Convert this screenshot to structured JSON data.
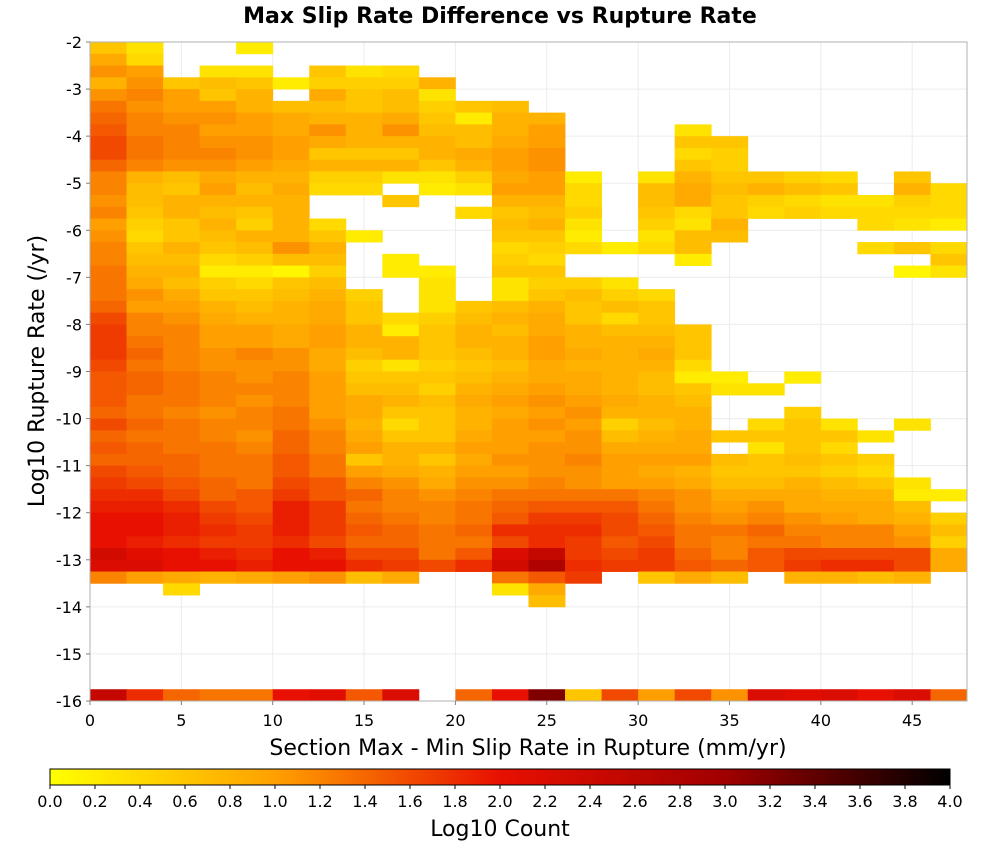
{
  "chart_data": {
    "type": "heatmap",
    "title": "Max Slip Rate Difference vs Rupture Rate",
    "xlabel": "Section Max - Min Slip Rate in Rupture (mm/yr)",
    "ylabel": "Log10 Rupture Rate (/yr)",
    "xlim": [
      0,
      48
    ],
    "ylim": [
      -16,
      -2
    ],
    "x_ticks": [
      "0",
      "5",
      "10",
      "15",
      "20",
      "25",
      "30",
      "35",
      "40",
      "45"
    ],
    "y_ticks": [
      "-2",
      "-3",
      "-4",
      "-5",
      "-6",
      "-7",
      "-8",
      "-9",
      "-10",
      "-11",
      "-12",
      "-13",
      "-14",
      "-15",
      "-16"
    ],
    "grid": true,
    "x_bin_width": 2,
    "y_bin_height": 0.25,
    "x_bin_starts": [
      0,
      2,
      4,
      6,
      8,
      10,
      12,
      14,
      16,
      18,
      20,
      22,
      24,
      26,
      28,
      30,
      32,
      34,
      36,
      38,
      40,
      42,
      44,
      46
    ],
    "y_bin_lows": [
      -2.25,
      -2.5,
      -2.75,
      -3.0,
      -3.25,
      -3.5,
      -3.75,
      -4.0,
      -4.25,
      -4.5,
      -4.75,
      -5.0,
      -5.25,
      -5.5,
      -5.75,
      -6.0,
      -6.25,
      -6.5,
      -6.75,
      -7.0,
      -7.25,
      -7.5,
      -7.75,
      -8.0,
      -8.25,
      -8.5,
      -8.75,
      -9.0,
      -9.25,
      -9.5,
      -9.75,
      -10.0,
      -10.25,
      -10.5,
      -10.75,
      -11.0,
      -11.25,
      -11.5,
      -11.75,
      -12.0,
      -12.25,
      -12.5,
      -12.75,
      -13.0,
      -13.25,
      -13.5,
      -13.75,
      -14.0,
      -16.0
    ],
    "log10_counts": [
      [
        0.6,
        0.3,
        null,
        null,
        0.2,
        null,
        null,
        null,
        null,
        null,
        null,
        null,
        null,
        null,
        null,
        null,
        null,
        null,
        null,
        null,
        null,
        null,
        null,
        null
      ],
      [
        0.9,
        0.4,
        null,
        null,
        null,
        null,
        null,
        null,
        null,
        null,
        null,
        null,
        null,
        null,
        null,
        null,
        null,
        null,
        null,
        null,
        null,
        null,
        null,
        null
      ],
      [
        1.1,
        1.0,
        null,
        0.3,
        0.3,
        null,
        0.6,
        0.3,
        0.4,
        null,
        null,
        null,
        null,
        null,
        null,
        null,
        null,
        null,
        null,
        null,
        null,
        null,
        null,
        null
      ],
      [
        0.8,
        1.1,
        0.6,
        0.7,
        0.6,
        0.2,
        0.5,
        0.5,
        0.5,
        0.8,
        null,
        null,
        null,
        null,
        null,
        null,
        null,
        null,
        null,
        null,
        null,
        null,
        null,
        null
      ],
      [
        1.1,
        1.2,
        1.0,
        0.6,
        0.8,
        null,
        0.9,
        0.6,
        0.7,
        0.3,
        null,
        null,
        null,
        null,
        null,
        null,
        null,
        null,
        null,
        null,
        null,
        null,
        null,
        null
      ],
      [
        1.3,
        1.1,
        1.0,
        1.0,
        0.8,
        0.7,
        0.7,
        0.6,
        0.7,
        0.5,
        0.6,
        0.7,
        null,
        null,
        null,
        null,
        null,
        null,
        null,
        null,
        null,
        null,
        null,
        null
      ],
      [
        1.4,
        1.2,
        1.1,
        1.1,
        1.0,
        0.9,
        0.8,
        0.8,
        0.9,
        0.6,
        0.2,
        0.8,
        0.8,
        null,
        null,
        null,
        null,
        null,
        null,
        null,
        null,
        null,
        null,
        null
      ],
      [
        1.5,
        1.2,
        1.2,
        1.0,
        1.0,
        0.9,
        1.1,
        0.8,
        1.1,
        0.7,
        0.7,
        0.8,
        1.0,
        null,
        null,
        null,
        0.3,
        null,
        null,
        null,
        null,
        null,
        null,
        null
      ],
      [
        1.6,
        1.3,
        1.2,
        1.1,
        1.1,
        1.0,
        0.9,
        0.8,
        0.8,
        0.8,
        0.7,
        0.9,
        1.0,
        null,
        null,
        null,
        0.6,
        0.6,
        null,
        null,
        null,
        null,
        null,
        null
      ],
      [
        1.6,
        1.3,
        1.2,
        1.2,
        1.1,
        1.0,
        0.6,
        0.6,
        0.6,
        0.8,
        0.9,
        1.0,
        1.1,
        null,
        null,
        null,
        0.4,
        0.5,
        null,
        null,
        null,
        null,
        null,
        null
      ],
      [
        1.4,
        1.2,
        1.1,
        1.1,
        1.0,
        0.9,
        0.8,
        0.8,
        0.8,
        0.6,
        0.8,
        1.0,
        1.1,
        null,
        null,
        null,
        0.6,
        0.5,
        null,
        null,
        null,
        null,
        null,
        null
      ],
      [
        1.2,
        0.8,
        0.7,
        0.9,
        0.8,
        0.8,
        0.5,
        0.5,
        0.3,
        0.3,
        0.5,
        0.9,
        1.0,
        0.2,
        null,
        0.3,
        0.8,
        0.6,
        0.6,
        0.5,
        0.4,
        null,
        0.6,
        null
      ],
      [
        1.2,
        0.7,
        0.6,
        1.0,
        0.7,
        0.9,
        0.4,
        0.4,
        null,
        0.2,
        0.3,
        1.0,
        1.0,
        0.4,
        null,
        0.7,
        0.9,
        0.7,
        0.8,
        0.7,
        0.6,
        null,
        0.8,
        0.4
      ],
      [
        1.1,
        0.7,
        0.8,
        0.8,
        0.8,
        0.8,
        null,
        null,
        0.6,
        null,
        null,
        0.8,
        0.8,
        0.4,
        null,
        0.7,
        0.9,
        0.6,
        0.5,
        0.4,
        0.3,
        0.3,
        0.5,
        0.4
      ],
      [
        1.2,
        0.6,
        0.8,
        0.7,
        0.6,
        0.8,
        null,
        null,
        null,
        null,
        0.4,
        0.6,
        0.7,
        0.5,
        null,
        0.6,
        0.4,
        0.6,
        0.4,
        0.5,
        0.4,
        0.4,
        0.4,
        0.4
      ],
      [
        1.0,
        0.5,
        0.6,
        0.8,
        0.5,
        0.8,
        0.4,
        null,
        null,
        null,
        null,
        0.7,
        0.8,
        0.3,
        null,
        0.5,
        0.3,
        0.8,
        null,
        null,
        null,
        0.4,
        0.3,
        0.2
      ],
      [
        1.1,
        0.4,
        0.6,
        0.7,
        0.8,
        0.8,
        0.6,
        0.2,
        null,
        null,
        null,
        0.6,
        0.6,
        0.2,
        null,
        0.3,
        0.7,
        0.7,
        null,
        null,
        null,
        null,
        null,
        null
      ],
      [
        1.2,
        0.6,
        0.8,
        0.6,
        0.7,
        1.1,
        0.8,
        null,
        null,
        null,
        null,
        0.4,
        0.5,
        0.4,
        0.2,
        0.4,
        0.7,
        null,
        null,
        null,
        null,
        0.4,
        0.6,
        0.4
      ],
      [
        1.2,
        0.7,
        0.7,
        0.4,
        0.5,
        0.7,
        0.7,
        null,
        0.2,
        null,
        null,
        0.5,
        0.4,
        null,
        null,
        null,
        0.2,
        null,
        null,
        null,
        null,
        null,
        null,
        0.6
      ],
      [
        1.3,
        0.8,
        0.8,
        0.2,
        0.2,
        0.1,
        0.5,
        null,
        0.2,
        0.2,
        null,
        0.6,
        0.6,
        null,
        null,
        null,
        null,
        null,
        null,
        null,
        null,
        null,
        0.1,
        0.3
      ],
      [
        1.3,
        0.9,
        0.7,
        0.5,
        0.4,
        0.6,
        0.7,
        null,
        null,
        0.3,
        null,
        0.3,
        0.5,
        0.5,
        0.3,
        null,
        null,
        null,
        null,
        null,
        null,
        null,
        null,
        null
      ],
      [
        1.3,
        1.1,
        0.9,
        0.6,
        0.6,
        0.7,
        0.8,
        0.5,
        null,
        0.3,
        null,
        0.3,
        0.6,
        0.7,
        0.5,
        0.4,
        null,
        null,
        null,
        null,
        null,
        null,
        null,
        null
      ],
      [
        1.4,
        1.0,
        1.0,
        0.8,
        0.7,
        0.8,
        0.9,
        0.6,
        null,
        0.3,
        0.6,
        0.7,
        0.8,
        0.6,
        0.7,
        0.6,
        null,
        null,
        null,
        null,
        null,
        null,
        null,
        null
      ],
      [
        1.6,
        1.2,
        1.1,
        0.9,
        0.8,
        0.8,
        0.9,
        0.6,
        0.4,
        0.5,
        0.7,
        0.8,
        0.9,
        0.6,
        0.4,
        0.6,
        null,
        null,
        null,
        null,
        null,
        null,
        null,
        null
      ],
      [
        1.7,
        1.2,
        1.2,
        1.0,
        1.0,
        0.9,
        1.0,
        0.8,
        0.2,
        0.6,
        0.8,
        0.7,
        0.9,
        0.8,
        0.7,
        0.7,
        0.6,
        null,
        null,
        null,
        null,
        null,
        null,
        null
      ],
      [
        1.7,
        1.3,
        1.2,
        1.0,
        1.0,
        0.9,
        1.0,
        0.8,
        0.8,
        0.6,
        0.8,
        0.8,
        1.0,
        0.8,
        0.8,
        0.8,
        0.6,
        null,
        null,
        null,
        null,
        null,
        null,
        null
      ],
      [
        1.7,
        1.4,
        1.2,
        1.1,
        1.2,
        1.1,
        0.9,
        0.7,
        0.8,
        0.6,
        0.7,
        0.8,
        1.0,
        0.9,
        0.8,
        0.9,
        0.6,
        null,
        null,
        null,
        null,
        null,
        null,
        null
      ],
      [
        1.6,
        1.3,
        1.2,
        1.1,
        1.1,
        1.1,
        0.9,
        0.5,
        0.3,
        0.5,
        0.6,
        0.7,
        0.9,
        0.8,
        0.8,
        0.8,
        0.4,
        null,
        null,
        null,
        null,
        null,
        null,
        null
      ],
      [
        1.5,
        1.4,
        1.3,
        1.2,
        1.1,
        1.2,
        1.0,
        0.6,
        0.6,
        0.6,
        0.7,
        0.8,
        0.9,
        0.9,
        0.8,
        0.7,
        0.2,
        0.2,
        null,
        0.2,
        null,
        null,
        null,
        null
      ],
      [
        1.5,
        1.4,
        1.3,
        1.2,
        1.2,
        1.2,
        1.0,
        0.7,
        0.7,
        0.5,
        0.8,
        0.9,
        1.0,
        0.9,
        0.8,
        0.7,
        0.6,
        0.3,
        0.3,
        null,
        null,
        null,
        null,
        null
      ],
      [
        1.5,
        1.3,
        1.3,
        1.2,
        1.1,
        1.2,
        1.0,
        0.9,
        0.8,
        0.7,
        0.9,
        1.0,
        1.1,
        1.0,
        0.9,
        0.8,
        0.7,
        null,
        null,
        null,
        null,
        null,
        null,
        null
      ],
      [
        1.4,
        1.3,
        1.2,
        1.1,
        1.2,
        1.3,
        1.0,
        0.9,
        0.6,
        0.6,
        0.8,
        0.9,
        1.0,
        1.1,
        0.8,
        0.8,
        0.8,
        null,
        null,
        0.5,
        null,
        null,
        null,
        null
      ],
      [
        1.6,
        1.4,
        1.3,
        1.2,
        1.2,
        1.3,
        1.1,
        0.8,
        0.4,
        0.6,
        0.8,
        1.0,
        1.1,
        1.0,
        0.5,
        0.7,
        0.8,
        null,
        0.4,
        0.6,
        0.3,
        null,
        0.3,
        null
      ],
      [
        1.4,
        1.3,
        1.3,
        1.2,
        1.1,
        1.4,
        1.2,
        0.9,
        0.6,
        0.6,
        0.9,
        1.0,
        1.0,
        1.1,
        0.7,
        0.8,
        0.9,
        0.6,
        0.6,
        0.6,
        0.6,
        0.3,
        null,
        null
      ],
      [
        1.5,
        1.4,
        1.3,
        1.3,
        1.2,
        1.4,
        1.2,
        1.0,
        0.8,
        0.8,
        1.0,
        1.0,
        1.1,
        1.1,
        0.9,
        0.9,
        0.9,
        null,
        0.3,
        0.6,
        0.4,
        null,
        null,
        null
      ],
      [
        1.4,
        1.4,
        1.4,
        1.3,
        1.3,
        1.5,
        1.3,
        0.6,
        0.8,
        0.6,
        0.9,
        1.1,
        1.1,
        1.2,
        1.0,
        1.0,
        1.0,
        0.7,
        0.6,
        0.7,
        0.6,
        0.5,
        null,
        null
      ],
      [
        1.6,
        1.5,
        1.4,
        1.3,
        1.3,
        1.5,
        1.3,
        1.0,
        0.9,
        0.8,
        1.0,
        1.0,
        1.1,
        1.1,
        1.0,
        0.9,
        0.8,
        0.6,
        0.6,
        0.6,
        0.5,
        0.4,
        null,
        null
      ],
      [
        1.7,
        1.6,
        1.5,
        1.4,
        1.3,
        1.6,
        1.5,
        1.2,
        1.1,
        0.9,
        1.1,
        1.1,
        1.2,
        1.1,
        1.0,
        1.0,
        0.9,
        0.7,
        0.7,
        0.8,
        0.7,
        0.6,
        0.3,
        null
      ],
      [
        1.8,
        1.8,
        1.6,
        1.4,
        1.5,
        1.7,
        1.5,
        1.4,
        1.2,
        1.1,
        1.2,
        1.3,
        1.3,
        1.3,
        1.3,
        1.2,
        1.1,
        0.9,
        0.9,
        0.9,
        0.8,
        0.8,
        0.2,
        0.2
      ],
      [
        1.9,
        1.9,
        1.8,
        1.6,
        1.5,
        1.9,
        1.7,
        1.3,
        1.2,
        1.2,
        1.3,
        1.4,
        1.5,
        1.5,
        1.5,
        1.3,
        1.1,
        1.0,
        1.1,
        0.9,
        0.9,
        0.9,
        0.7,
        null
      ],
      [
        2.0,
        2.0,
        1.9,
        1.7,
        1.6,
        1.9,
        1.7,
        1.4,
        1.3,
        1.2,
        1.3,
        1.5,
        1.7,
        1.7,
        1.6,
        1.4,
        1.2,
        1.1,
        1.2,
        1.1,
        1.0,
        0.9,
        0.8,
        0.5
      ],
      [
        2.0,
        2.0,
        1.9,
        1.8,
        1.7,
        1.9,
        1.7,
        1.5,
        1.4,
        1.3,
        1.4,
        1.8,
        1.8,
        1.8,
        1.6,
        1.5,
        1.3,
        1.3,
        1.4,
        1.2,
        1.2,
        1.2,
        1.0,
        0.7
      ],
      [
        2.0,
        1.9,
        1.8,
        1.7,
        1.7,
        1.8,
        1.6,
        1.4,
        1.4,
        1.3,
        1.3,
        1.6,
        1.8,
        1.7,
        1.5,
        1.6,
        1.3,
        1.2,
        1.3,
        1.3,
        1.2,
        1.2,
        1.1,
        0.5
      ],
      [
        2.3,
        2.1,
        2.0,
        1.9,
        1.8,
        2.0,
        1.9,
        1.6,
        1.6,
        1.3,
        1.5,
        2.2,
        2.5,
        1.7,
        1.6,
        1.7,
        1.4,
        1.2,
        1.5,
        1.6,
        1.6,
        1.6,
        1.6,
        0.9
      ],
      [
        2.2,
        2.2,
        2.0,
        2.0,
        1.9,
        2.0,
        2.0,
        1.8,
        1.7,
        1.6,
        1.8,
        2.3,
        2.8,
        1.8,
        1.7,
        1.7,
        1.5,
        1.4,
        1.5,
        1.7,
        1.8,
        1.8,
        1.6,
        0.9
      ],
      [
        1.2,
        1.0,
        0.9,
        0.8,
        0.9,
        1.0,
        1.1,
        0.7,
        0.9,
        null,
        null,
        1.3,
        1.5,
        1.7,
        null,
        0.6,
        0.9,
        0.7,
        null,
        0.8,
        0.8,
        0.7,
        0.8,
        null
      ],
      [
        null,
        null,
        0.4,
        null,
        null,
        null,
        null,
        null,
        null,
        null,
        null,
        0.3,
        0.9,
        null,
        null,
        null,
        null,
        null,
        null,
        null,
        null,
        null,
        null,
        null
      ],
      [
        null,
        null,
        null,
        null,
        null,
        null,
        null,
        null,
        null,
        null,
        null,
        null,
        0.7,
        null,
        null,
        null,
        null,
        null,
        null,
        null,
        null,
        null,
        null,
        null
      ],
      [
        2.5,
        1.8,
        1.4,
        1.3,
        1.3,
        2.0,
        2.1,
        1.5,
        2.2,
        null,
        1.4,
        2.0,
        3.2,
        0.6,
        1.6,
        1.0,
        1.6,
        1.1,
        2.2,
        2.1,
        2.2,
        2.0,
        2.2,
        1.4
      ]
    ],
    "colorbar": {
      "label": "Log10 Count",
      "range": [
        0.0,
        4.0
      ],
      "ticks": [
        "0.0",
        "0.2",
        "0.4",
        "0.6",
        "0.8",
        "1.0",
        "1.2",
        "1.4",
        "1.6",
        "1.8",
        "2.0",
        "2.2",
        "2.4",
        "2.6",
        "2.8",
        "3.0",
        "3.2",
        "3.4",
        "3.6",
        "3.8",
        "4.0"
      ],
      "colors": [
        "#ffff00",
        "#ffa000",
        "#e81000",
        "#a00000",
        "#000000"
      ]
    }
  }
}
